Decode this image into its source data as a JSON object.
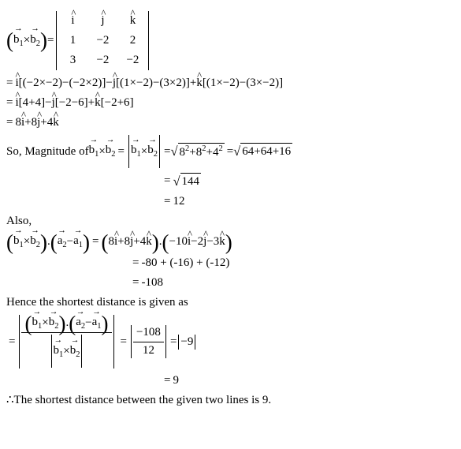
{
  "typography": {
    "family": "Times New Roman, serif",
    "base_size_pt": 12,
    "color": "#000000",
    "background": "#ffffff"
  },
  "sym": {
    "i": "i",
    "j": "j",
    "k": "k",
    "b1": "b",
    "b1sub": "1",
    "b2": "b",
    "b2sub": "2",
    "a1": "a",
    "a1sub": "1",
    "a2": "a",
    "a2sub": "2",
    "cross": "×",
    "dot": ".",
    "minus": "−",
    "plus": "+",
    "eq": "=",
    "therefore": "∴"
  },
  "det": {
    "r1": [
      "i",
      "j",
      "k"
    ],
    "r2": [
      "1",
      "−2",
      "2"
    ],
    "r3": [
      "3",
      "−2",
      "−2"
    ]
  },
  "expand": {
    "l1a": "(−2×−2)−(−2×2)",
    "l1b": "(1×−2)−(3×2)",
    "l1c": "(1×−2)−(3×−2)",
    "l2a": "4+4",
    "l2b": "−2−6",
    "l2c": "−2+6",
    "l3": "8",
    "l3b": "8",
    "l3c": "4"
  },
  "mag": {
    "label": "So, Magnitude of ",
    "inside": "8",
    "e2": "2",
    "p": "+",
    "b": "8",
    "c": "4",
    "sum": "64+64+16",
    "s144": "144",
    "s12": "12"
  },
  "also": "Also,",
  "dot": {
    "vec_b": "8",
    "vec_b2": "8",
    "vec_b3": "4",
    "a_i": "−10",
    "a_j": "−2",
    "a_k": "−3",
    "s1": "-80 + (-16) + (-12)",
    "s2": "-108"
  },
  "hence": "Hence the shortest distance is given as",
  "final": {
    "num": "−108",
    "den": "12",
    "abs9": "−9",
    "ans": "9"
  },
  "conclusion": " The shortest distance between the given two lines is 9."
}
